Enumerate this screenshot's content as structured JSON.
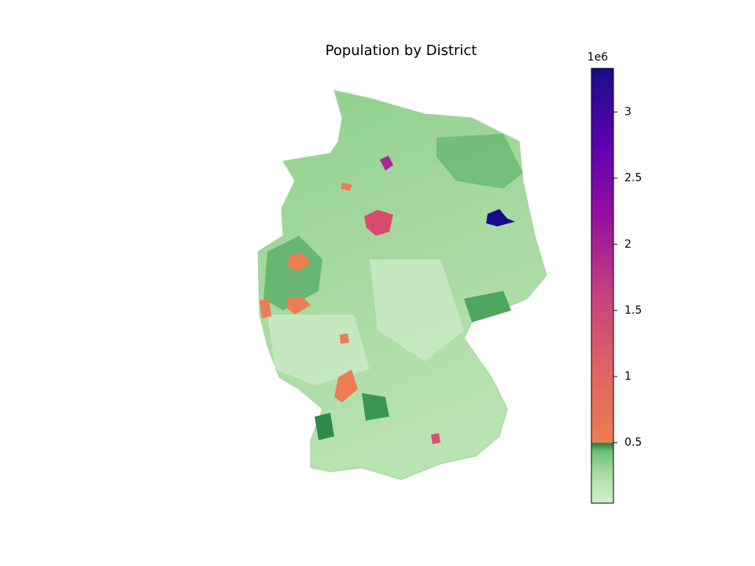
{
  "chart_data": {
    "type": "choropleth",
    "title": "Population by District",
    "colorbar": {
      "lim": [
        0.043,
        3.33
      ],
      "ticks": [
        0.5,
        1.0,
        1.5,
        2.0,
        2.5,
        3.0
      ],
      "offset_label": "1e6"
    }
  }
}
